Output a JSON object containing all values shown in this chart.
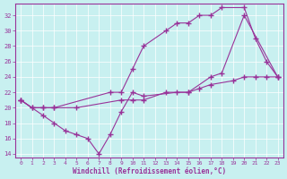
{
  "xlabel": "Windchill (Refroidissement éolien,°C)",
  "bg_color": "#c8f0f0",
  "line_color": "#993399",
  "xlim": [
    -0.5,
    23.5
  ],
  "ylim": [
    13.5,
    33.5
  ],
  "xticks": [
    0,
    1,
    2,
    3,
    4,
    5,
    6,
    7,
    8,
    9,
    10,
    11,
    12,
    13,
    14,
    15,
    16,
    17,
    18,
    19,
    20,
    21,
    22,
    23
  ],
  "yticks": [
    14,
    16,
    18,
    20,
    22,
    24,
    26,
    28,
    30,
    32
  ],
  "curve1_x": [
    0,
    1,
    2,
    3,
    8,
    9,
    10,
    11,
    13,
    14,
    15,
    16,
    17,
    18,
    20,
    21,
    22,
    23
  ],
  "curve1_y": [
    21,
    20,
    20,
    20,
    22,
    22,
    25,
    28,
    30,
    31,
    31,
    32,
    32,
    33,
    33,
    29,
    26,
    24
  ],
  "curve2_x": [
    0,
    2,
    3,
    4,
    5,
    6,
    7,
    8,
    9,
    10,
    11,
    14,
    15,
    17,
    18,
    20,
    23
  ],
  "curve2_y": [
    21,
    19,
    18,
    17,
    16.5,
    16,
    14,
    16.5,
    19.5,
    22,
    21.5,
    22,
    22,
    24,
    24.5,
    32,
    24
  ],
  "curve3_x": [
    0,
    1,
    2,
    3,
    5,
    9,
    10,
    11,
    13,
    15,
    16,
    17,
    19,
    20,
    21,
    22,
    23
  ],
  "curve3_y": [
    21,
    20,
    20,
    20,
    20,
    21,
    21,
    21,
    22,
    22,
    22.5,
    23,
    23.5,
    24,
    24,
    24,
    24
  ]
}
